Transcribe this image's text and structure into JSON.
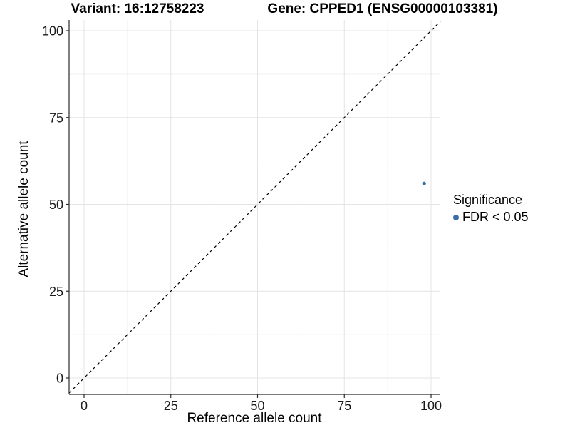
{
  "chart_data": {
    "type": "scatter",
    "title_left": "Variant: 16:12758223",
    "title_right": "Gene: CPPED1 (ENSG00000103381)",
    "xlabel": "Reference allele count",
    "ylabel": "Alternative allele count",
    "x_ticks": [
      0,
      25,
      50,
      75,
      100
    ],
    "y_ticks": [
      0,
      25,
      50,
      75,
      100
    ],
    "xlim": [
      -4.3,
      102.7
    ],
    "ylim": [
      -4.7,
      103.2
    ],
    "grid": "major and minor gridlines on, minor at midpoints (12.5 steps)",
    "identity_line": {
      "type": "y=x",
      "style": "dashed",
      "color": "#000000"
    },
    "series": [
      {
        "name": "FDR < 0.05",
        "color": "#3C6EA5",
        "points": [
          {
            "x": 98,
            "y": 56
          }
        ]
      }
    ],
    "legend": {
      "title": "Significance",
      "position": "right",
      "items": [
        {
          "label": "FDR < 0.05",
          "color": "#3C6EA5"
        }
      ]
    },
    "colors": {
      "background": "#ffffff",
      "grid_major": "#e4e4e4",
      "grid_minor": "#f1f1f1",
      "axis_line": "#2b2b2b",
      "tick_label": "#1a1a1a",
      "point": "#3C6EA5"
    }
  }
}
